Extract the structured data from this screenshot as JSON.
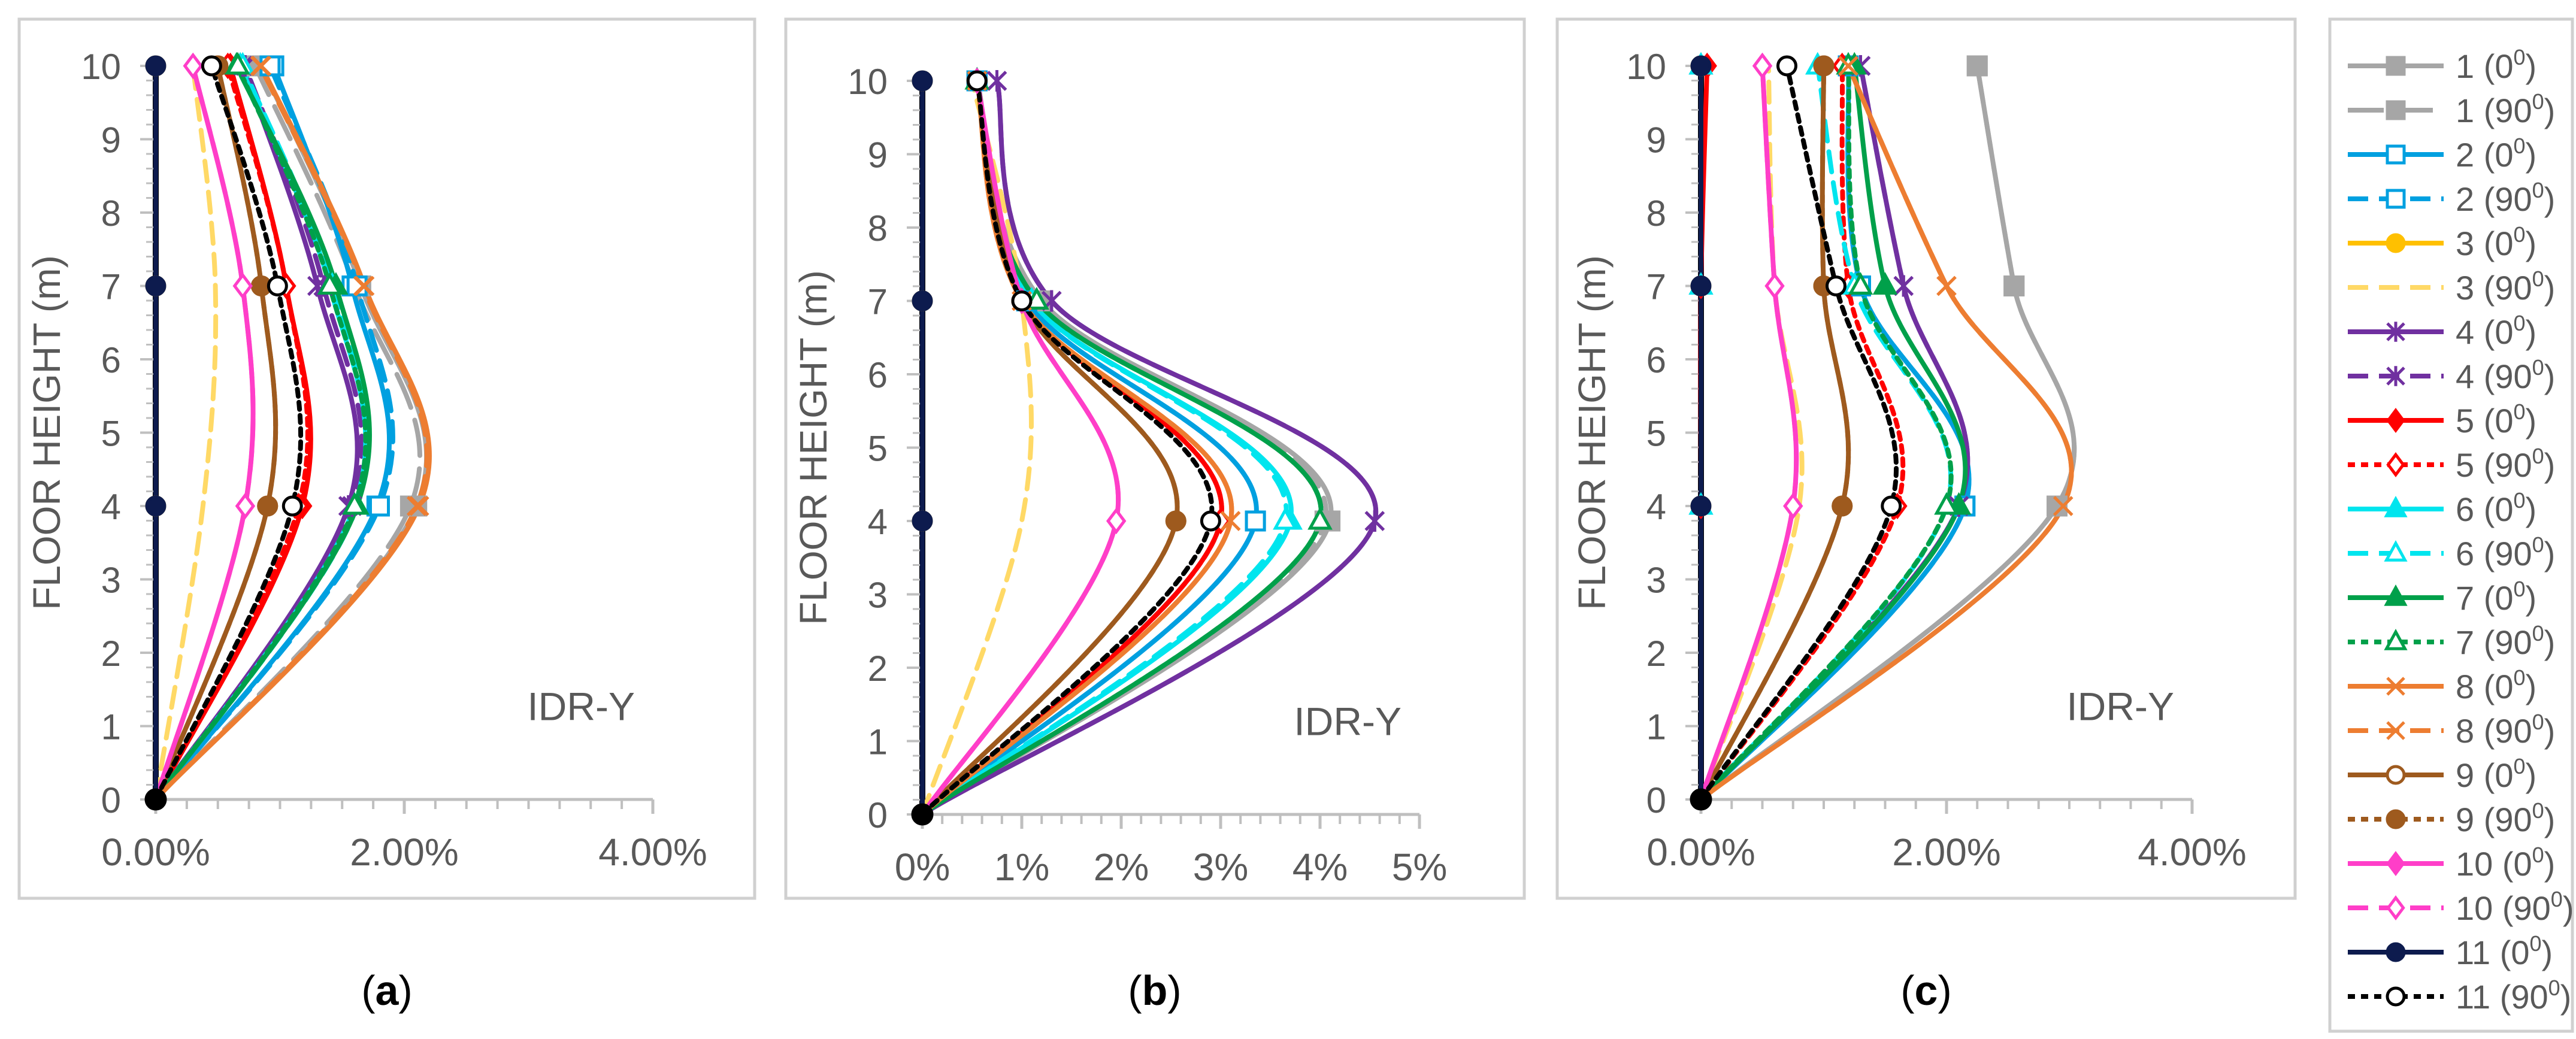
{
  "figure": {
    "panel_labels": [
      "(a)",
      "(b)",
      "(c)"
    ]
  },
  "legend": {
    "entries": [
      {
        "label": "1 (0",
        "sup": "0",
        "close": ")",
        "color": "#A6A6A6",
        "dash": "solid",
        "marker": "square",
        "filled": true
      },
      {
        "label": "1 (90",
        "sup": "0",
        "close": ")",
        "color": "#A6A6A6",
        "dash": "longdash",
        "marker": "square",
        "filled": true
      },
      {
        "label": "2 (0",
        "sup": "0",
        "close": ")",
        "color": "#00A0E0",
        "dash": "solid",
        "marker": "square",
        "filled": false
      },
      {
        "label": "2 (90",
        "sup": "0",
        "close": ")",
        "color": "#00A0E0",
        "dash": "dash",
        "marker": "square",
        "filled": false
      },
      {
        "label": "3 (0",
        "sup": "0",
        "close": ")",
        "color": "#FFC000",
        "dash": "solid",
        "marker": "circle",
        "filled": true
      },
      {
        "label": "3 (90",
        "sup": "0",
        "close": ")",
        "color": "#FFD966",
        "dash": "dash",
        "marker": "none",
        "filled": false
      },
      {
        "label": "4 (0",
        "sup": "0",
        "close": ")",
        "color": "#7030A0",
        "dash": "solid",
        "marker": "star",
        "filled": false
      },
      {
        "label": "4 (90",
        "sup": "0",
        "close": ")",
        "color": "#7030A0",
        "dash": "dash",
        "marker": "star",
        "filled": false
      },
      {
        "label": "5 (0",
        "sup": "0",
        "close": ")",
        "color": "#FF0000",
        "dash": "solid",
        "marker": "diamond",
        "filled": true
      },
      {
        "label": "5 (90",
        "sup": "0",
        "close": ")",
        "color": "#FF0000",
        "dash": "dot",
        "marker": "diamond",
        "filled": false
      },
      {
        "label": "6 (0",
        "sup": "0",
        "close": ")",
        "color": "#00E5EE",
        "dash": "solid",
        "marker": "triangle",
        "filled": true
      },
      {
        "label": "6 (90",
        "sup": "0",
        "close": ")",
        "color": "#00E5EE",
        "dash": "dash",
        "marker": "triangle",
        "filled": false
      },
      {
        "label": "7 (0",
        "sup": "0",
        "close": ")",
        "color": "#00A04A",
        "dash": "solid",
        "marker": "triangle",
        "filled": true
      },
      {
        "label": "7 (90",
        "sup": "0",
        "close": ")",
        "color": "#00A04A",
        "dash": "dot",
        "marker": "triangle",
        "filled": false
      },
      {
        "label": "8 (0",
        "sup": "0",
        "close": ")",
        "color": "#ED7D31",
        "dash": "solid",
        "marker": "x",
        "filled": false
      },
      {
        "label": "8 (90",
        "sup": "0",
        "close": ")",
        "color": "#ED7D31",
        "dash": "dash",
        "marker": "x",
        "filled": false
      },
      {
        "label": "9 (0",
        "sup": "0",
        "close": ")",
        "color": "#9E5A1E",
        "dash": "solid",
        "marker": "circle",
        "filled": false
      },
      {
        "label": "9 (90",
        "sup": "0",
        "close": ")",
        "color": "#9E5A1E",
        "dash": "dot",
        "marker": "circle",
        "filled": true
      },
      {
        "label": "10 (0",
        "sup": "0",
        "close": ")",
        "color": "#FF3EC8",
        "dash": "solid",
        "marker": "diamond",
        "filled": true
      },
      {
        "label": "10 (90",
        "sup": "0",
        "close": ")",
        "color": "#FF3EC8",
        "dash": "dash",
        "marker": "diamond",
        "filled": false
      },
      {
        "label": "11 (0",
        "sup": "0",
        "close": ")",
        "color": "#0D1B4E",
        "dash": "solid",
        "marker": "circle",
        "filled": true
      },
      {
        "label": "11 (90",
        "sup": "0",
        "close": ")",
        "color": "#000000",
        "dash": "dot",
        "marker": "circle",
        "filled": false
      }
    ]
  },
  "chart_data": [
    {
      "type": "line",
      "orientation": "profile",
      "panel": "(a)",
      "annotation": "IDR-Y",
      "ylabel": "FLOOR HEIGHT (m)",
      "xlabel": "",
      "xlim": [
        0,
        4
      ],
      "ylim": [
        0,
        10
      ],
      "xticks": [
        0,
        2,
        4
      ],
      "xtick_labels": [
        "0.00%",
        "2.00%",
        "4.00%"
      ],
      "xminor_step": 0.25,
      "yticks": [
        0,
        1,
        2,
        3,
        4,
        5,
        6,
        7,
        8,
        9,
        10
      ],
      "yminor_step": 0.2,
      "y": [
        0,
        4,
        7,
        10
      ],
      "series": [
        {
          "name": "1 (0)",
          "values": [
            0,
            2.1,
            1.65,
            0.85
          ]
        },
        {
          "name": "1 (90)",
          "values": [
            0,
            2.05,
            1.6,
            0.8
          ]
        },
        {
          "name": "2 (0)",
          "values": [
            0,
            1.78,
            1.58,
            0.95
          ]
        },
        {
          "name": "2 (90)",
          "values": [
            0,
            1.8,
            1.62,
            0.92
          ]
        },
        {
          "name": "3 (0)",
          "values": [
            0,
            0,
            0,
            0
          ]
        },
        {
          "name": "3 (90)",
          "values": [
            0,
            0.38,
            0.48,
            0.3
          ]
        },
        {
          "name": "4 (0)",
          "values": [
            0,
            1.55,
            1.3,
            0.7
          ]
        },
        {
          "name": "4 (90)",
          "values": [
            0,
            1.58,
            1.35,
            0.72
          ]
        },
        {
          "name": "5 (0)",
          "values": [
            0,
            1.18,
            1.05,
            0.6
          ]
        },
        {
          "name": "5 (90)",
          "values": [
            0,
            1.15,
            1.05,
            0.58
          ]
        },
        {
          "name": "6 (0)",
          "values": [
            0,
            1.6,
            1.4,
            0.68
          ]
        },
        {
          "name": "6 (90)",
          "values": [
            0,
            1.62,
            1.42,
            0.7
          ]
        },
        {
          "name": "7 (0)",
          "values": [
            0,
            1.62,
            1.45,
            0.65
          ]
        },
        {
          "name": "7 (90)",
          "values": [
            0,
            1.6,
            1.4,
            0.66
          ]
        },
        {
          "name": "8 (0)",
          "values": [
            0,
            2.12,
            1.68,
            0.85
          ]
        },
        {
          "name": "8 (90)",
          "values": [
            0,
            2.1,
            1.67,
            0.84
          ]
        },
        {
          "name": "9 (0)",
          "values": [
            0,
            0.9,
            0.85,
            0.5
          ]
        },
        {
          "name": "9 (90)",
          "values": [
            0,
            0.9,
            0.85,
            0.5
          ]
        },
        {
          "name": "10 (0)",
          "values": [
            0,
            0.72,
            0.7,
            0.3
          ]
        },
        {
          "name": "10 (90)",
          "values": [
            0,
            0.72,
            0.7,
            0.3
          ]
        },
        {
          "name": "11 (0)",
          "values": [
            0,
            0,
            0,
            0
          ]
        },
        {
          "name": "11 (90)",
          "values": [
            0,
            1.1,
            0.98,
            0.45
          ]
        }
      ]
    },
    {
      "type": "line",
      "orientation": "profile",
      "panel": "(b)",
      "annotation": "IDR-Y",
      "ylabel": "FLOOR HEIGHT (m)",
      "xlabel": "",
      "xlim": [
        0,
        5
      ],
      "ylim": [
        0,
        10
      ],
      "xticks": [
        0,
        1,
        2,
        3,
        4,
        5
      ],
      "xtick_labels": [
        "0%",
        "1%",
        "2%",
        "3%",
        "4%",
        "5%"
      ],
      "xminor_step": 0.2,
      "yticks": [
        0,
        1,
        2,
        3,
        4,
        5,
        6,
        7,
        8,
        9,
        10
      ],
      "yminor_step": 0.2,
      "y": [
        0,
        4,
        7,
        10
      ],
      "series": [
        {
          "name": "1 (0)",
          "values": [
            0,
            4.1,
            1.2,
            0.55
          ]
        },
        {
          "name": "1 (90)",
          "values": [
            0,
            4.05,
            1.15,
            0.55
          ]
        },
        {
          "name": "2 (0)",
          "values": [
            0,
            3.35,
            1.05,
            0.55
          ]
        },
        {
          "name": "2 (90)",
          "values": [
            0,
            3.35,
            1.05,
            0.55
          ]
        },
        {
          "name": "3 (0)",
          "values": [
            0,
            0,
            0,
            0
          ]
        },
        {
          "name": "3 (90)",
          "values": [
            0,
            1.0,
            1.0,
            0.5
          ]
        },
        {
          "name": "4 (0)",
          "values": [
            0,
            4.55,
            1.3,
            0.75
          ]
        },
        {
          "name": "4 (90)",
          "values": [
            0,
            4.55,
            1.3,
            0.75
          ]
        },
        {
          "name": "5 (0)",
          "values": [
            0,
            3.0,
            1.0,
            0.55
          ]
        },
        {
          "name": "5 (90)",
          "values": [
            0,
            3.0,
            1.0,
            0.55
          ]
        },
        {
          "name": "6 (0)",
          "values": [
            0,
            3.7,
            1.1,
            0.55
          ]
        },
        {
          "name": "6 (90)",
          "values": [
            0,
            3.65,
            1.1,
            0.55
          ]
        },
        {
          "name": "7 (0)",
          "values": [
            0,
            4.0,
            1.15,
            0.55
          ]
        },
        {
          "name": "7 (90)",
          "values": [
            0,
            4.0,
            1.15,
            0.55
          ]
        },
        {
          "name": "8 (0)",
          "values": [
            0,
            3.1,
            1.0,
            0.55
          ]
        },
        {
          "name": "8 (90)",
          "values": [
            0,
            3.1,
            1.0,
            0.55
          ]
        },
        {
          "name": "9 (0)",
          "values": [
            0,
            2.55,
            1.0,
            0.55
          ]
        },
        {
          "name": "9 (90)",
          "values": [
            0,
            2.55,
            1.0,
            0.55
          ]
        },
        {
          "name": "10 (0)",
          "values": [
            0,
            1.95,
            1.0,
            0.55
          ]
        },
        {
          "name": "10 (90)",
          "values": [
            0,
            1.95,
            1.0,
            0.55
          ]
        },
        {
          "name": "11 (0)",
          "values": [
            0,
            0,
            0,
            0
          ]
        },
        {
          "name": "11 (90)",
          "values": [
            0,
            2.9,
            1.0,
            0.55
          ]
        }
      ]
    },
    {
      "type": "line",
      "orientation": "profile",
      "panel": "(c)",
      "annotation": "IDR-Y",
      "ylabel": "FLOOR HEIGHT (m)",
      "xlabel": "",
      "xlim": [
        0,
        4
      ],
      "ylim": [
        0,
        10
      ],
      "xticks": [
        0,
        2,
        4
      ],
      "xtick_labels": [
        "0.00%",
        "2.00%",
        "4.00%"
      ],
      "xminor_step": 0.25,
      "yticks": [
        0,
        1,
        2,
        3,
        4,
        5,
        6,
        7,
        8,
        9,
        10
      ],
      "yminor_step": 0.2,
      "y": [
        0,
        4,
        7,
        10
      ],
      "series": [
        {
          "name": "1 (0)",
          "values": [
            0,
            2.9,
            2.55,
            2.25
          ]
        },
        {
          "name": "1 (90)",
          "values": [
            0,
            2.9,
            2.55,
            2.25
          ]
        },
        {
          "name": "2 (0)",
          "values": [
            0,
            2.15,
            1.3,
            1.2
          ]
        },
        {
          "name": "2 (90)",
          "values": [
            0,
            2.15,
            1.3,
            1.2
          ]
        },
        {
          "name": "3 (0)",
          "values": [
            0,
            0,
            0,
            0
          ]
        },
        {
          "name": "3 (90)",
          "values": [
            0,
            0.8,
            0.6,
            0.55
          ]
        },
        {
          "name": "4 (0)",
          "values": [
            0,
            2.1,
            1.65,
            1.3
          ]
        },
        {
          "name": "4 (90)",
          "values": [
            0,
            2.1,
            1.65,
            1.3
          ]
        },
        {
          "name": "5 (0)",
          "values": [
            0,
            0,
            0,
            0.05
          ]
        },
        {
          "name": "5 (90)",
          "values": [
            0,
            1.6,
            1.2,
            1.15
          ]
        },
        {
          "name": "6 (0)",
          "values": [
            0,
            0,
            0,
            0
          ]
        },
        {
          "name": "6 (90)",
          "values": [
            0,
            2.0,
            1.25,
            0.95
          ]
        },
        {
          "name": "7 (0)",
          "values": [
            0,
            2.1,
            1.5,
            1.25
          ]
        },
        {
          "name": "7 (90)",
          "values": [
            0,
            2.0,
            1.3,
            1.2
          ]
        },
        {
          "name": "8 (0)",
          "values": [
            0,
            2.95,
            2.0,
            1.2
          ]
        },
        {
          "name": "8 (90)",
          "values": [
            0,
            2.95,
            2.0,
            1.2
          ]
        },
        {
          "name": "9 (0)",
          "values": [
            0,
            1.15,
            1.0,
            1.0
          ]
        },
        {
          "name": "9 (90)",
          "values": [
            0,
            1.15,
            1.0,
            1.0
          ]
        },
        {
          "name": "10 (0)",
          "values": [
            0,
            0.75,
            0.6,
            0.5
          ]
        },
        {
          "name": "10 (90)",
          "values": [
            0,
            0.75,
            0.6,
            0.5
          ]
        },
        {
          "name": "11 (0)",
          "values": [
            0,
            0,
            0,
            0
          ]
        },
        {
          "name": "11 (90)",
          "values": [
            0,
            1.55,
            1.1,
            0.7
          ]
        }
      ]
    }
  ]
}
